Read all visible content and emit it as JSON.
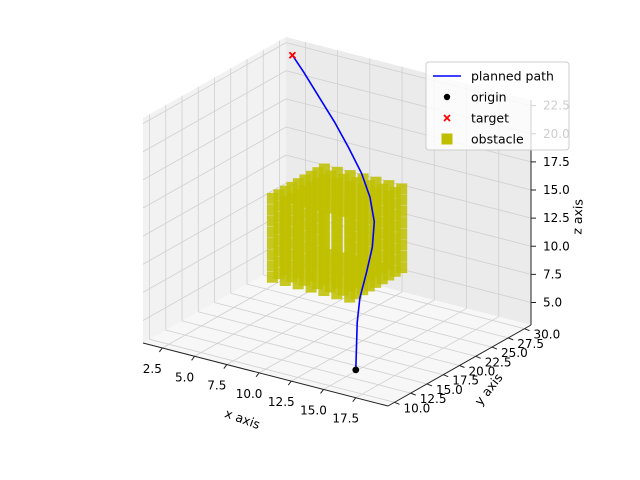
{
  "chart_data": {
    "type": "scatter3d",
    "title": "",
    "xlabel": "x axis",
    "ylabel": "y axis",
    "zlabel": "z axis",
    "xlim": [
      1,
      20
    ],
    "ylim": [
      9,
      31
    ],
    "zlim": [
      3,
      23
    ],
    "x_ticks": [
      "2.5",
      "5.0",
      "7.5",
      "10.0",
      "12.5",
      "15.0",
      "17.5"
    ],
    "y_ticks": [
      "10.0",
      "12.5",
      "15.0",
      "17.5",
      "20.0",
      "22.5",
      "25.0",
      "27.5",
      "30.0"
    ],
    "z_ticks": [
      "5.0",
      "7.5",
      "10.0",
      "12.5",
      "15.0",
      "17.5",
      "20.0",
      "22.5"
    ],
    "grid": true,
    "legend_position": "top-right",
    "series": [
      {
        "name": "planned path",
        "kind": "line",
        "color": "#0000ff",
        "points": [
          [
            17,
            10,
            5
          ],
          [
            16.4,
            11.3,
            6.5
          ],
          [
            15.8,
            12.6,
            8.0
          ],
          [
            15.3,
            14.0,
            9.6
          ],
          [
            15.0,
            15.6,
            11.2
          ],
          [
            14.6,
            17.3,
            12.8
          ],
          [
            13.9,
            19.0,
            14.3
          ],
          [
            12.7,
            20.7,
            15.6
          ],
          [
            11.2,
            22.4,
            16.7
          ],
          [
            9.4,
            24.0,
            17.9
          ],
          [
            7.5,
            25.6,
            19.1
          ],
          [
            5.6,
            27.0,
            20.3
          ],
          [
            3.7,
            28.4,
            21.5
          ],
          [
            2,
            30,
            22
          ]
        ]
      },
      {
        "name": "origin",
        "kind": "point",
        "color": "#000000",
        "marker": "circle",
        "points": [
          [
            17,
            10,
            5
          ]
        ]
      },
      {
        "name": "target",
        "kind": "point",
        "color": "#ff0000",
        "marker": "x",
        "points": [
          [
            2,
            30,
            22
          ]
        ]
      },
      {
        "name": "obstacle",
        "kind": "voxels",
        "color": "#bfbf00",
        "marker": "square",
        "box": {
          "x": [
            7,
            13
          ],
          "y": [
            17,
            25
          ],
          "z": [
            8,
            15
          ]
        }
      }
    ]
  }
}
